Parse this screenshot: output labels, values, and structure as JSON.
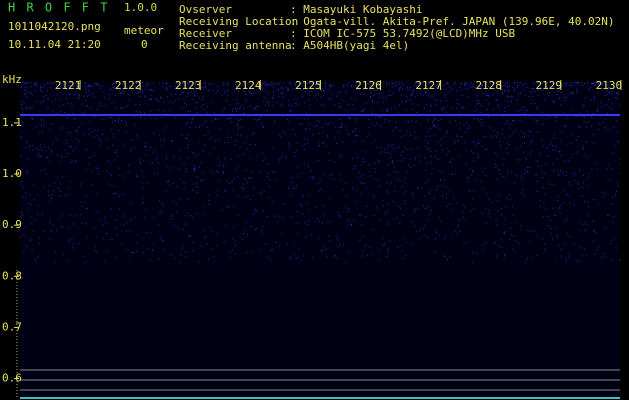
{
  "header": {
    "app_name": "H R O F F T",
    "version": "1.0.0",
    "file_name": "1011042120.png",
    "datetime": "10.11.04 21:20",
    "counter_label": "meteor",
    "counter_value": "0"
  },
  "info": [
    {
      "label": "Ovserver",
      "value": ": Masayuki Kobayashi"
    },
    {
      "label": "Receiving Location",
      "value": ": Ogata-vill. Akita-Pref. JAPAN (139.96E, 40.02N)"
    },
    {
      "label": "Receiver",
      "value": ": ICOM IC-575 53.7492(@LCD)MHz USB"
    },
    {
      "label": "Receiving antenna",
      "value": ": A504HB(yagi 4el)"
    }
  ],
  "spectrogram": {
    "time_labels": [
      "2121",
      "2122",
      "2123",
      "2124",
      "2125",
      "2126",
      "2127",
      "2128",
      "2129",
      "2130"
    ],
    "y_unit": "kHz",
    "ylim": [
      0.562,
      1.18
    ],
    "yticks": [
      1.1,
      {
        "value": 1.0,
        "label": "1.0"
      },
      0.9,
      0.8,
      0.7,
      0.6
    ]
  }
}
